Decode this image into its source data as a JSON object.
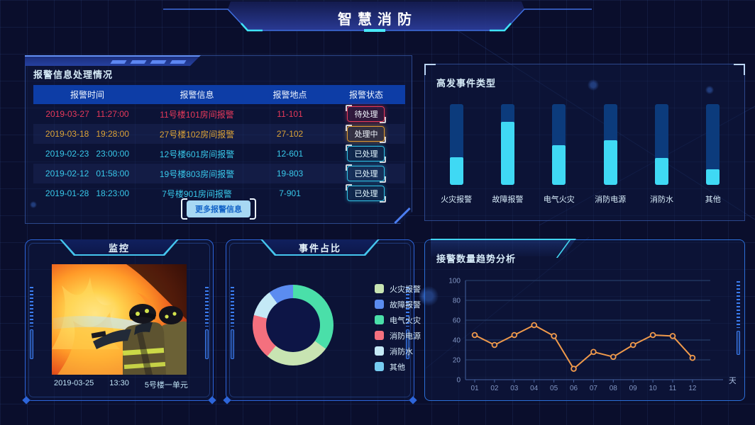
{
  "header": {
    "title": "智慧消防"
  },
  "alarm_panel": {
    "title": "报警信息处理情况",
    "columns": [
      "报警时间",
      "报警信息",
      "报警地点",
      "报警状态"
    ],
    "rows": [
      {
        "date": "2019-03-27",
        "time": "11:27:00",
        "info": "11号楼101房间报警",
        "location": "11-101",
        "status": "待处理",
        "status_type": "pending"
      },
      {
        "date": "2019-03-18",
        "time": "19:28:00",
        "info": "27号楼102房间报警",
        "location": "27-102",
        "status": "处理中",
        "status_type": "processing"
      },
      {
        "date": "2019-02-23",
        "time": "23:00:00",
        "info": "12号楼601房间报警",
        "location": "12-601",
        "status": "已处理",
        "status_type": "done"
      },
      {
        "date": "2019-02-12",
        "time": "01:58:00",
        "info": "19号楼803房间报警",
        "location": "19-803",
        "status": "已处理",
        "status_type": "done"
      },
      {
        "date": "2019-01-28",
        "time": "18:23:00",
        "info": "7号楼901房间报警",
        "location": "7-901",
        "status": "已处理",
        "status_type": "done"
      }
    ],
    "more_label": "更多报警信息"
  },
  "bar_panel": {
    "title": "高发事件类型"
  },
  "monitor_panel": {
    "title": "监控",
    "caption": {
      "date": "2019-03-25",
      "time": "13:30",
      "location": "5号楼一单元"
    }
  },
  "pie_panel": {
    "title": "事件占比"
  },
  "trend_panel": {
    "title": "接警数量趋势分析",
    "unit_label": "天"
  },
  "colors": {
    "accent_cyan": "#3fd9f4",
    "bar_track": "#0c3b7c",
    "bar_fill": "#3fd9f4",
    "table_header_bg": "#0d3da6",
    "status_pending": "#e8395a",
    "status_processing": "#e09a2f",
    "status_done": "#2fc1e4",
    "line": "#f09a4b"
  },
  "chart_data": [
    {
      "type": "bar",
      "title": "高发事件类型",
      "categories": [
        "火灾报警",
        "故障报警",
        "电气火灾",
        "消防电源",
        "消防水",
        "其他"
      ],
      "values": [
        34,
        78,
        49,
        55,
        33,
        19
      ],
      "value_unit": "percent_of_track",
      "ylim": [
        0,
        100
      ],
      "track_color": "#0c3b7c",
      "fill_color": "#3fd9f4"
    },
    {
      "type": "pie",
      "title": "事件占比",
      "inner_radius_ratio": 0.67,
      "legend_position": "right",
      "slices": [
        {
          "name": "电气火灾",
          "percent": 35,
          "color": "#4adfa9"
        },
        {
          "name": "火灾报警",
          "percent": 26,
          "color": "#c8e4b2"
        },
        {
          "name": "消防电源",
          "percent": 18,
          "color": "#f4707e"
        },
        {
          "name": "消防水",
          "percent": 11,
          "color": "#c4e9f6"
        },
        {
          "name": "故障报警",
          "percent": 10,
          "color": "#5b8cf0"
        },
        {
          "name": "其他",
          "percent": 0,
          "color": "#76ccf1"
        }
      ],
      "legend": [
        {
          "label": "火灾报警",
          "color": "#c8e4b2"
        },
        {
          "label": "故障报警",
          "color": "#5b8cf0"
        },
        {
          "label": "电气火灾",
          "color": "#4adfa9"
        },
        {
          "label": "消防电源",
          "color": "#f4707e"
        },
        {
          "label": "消防水",
          "color": "#c4e9f6"
        },
        {
          "label": "其他",
          "color": "#76ccf1"
        }
      ]
    },
    {
      "type": "line",
      "title": "接警数量趋势分析",
      "x": [
        "01",
        "02",
        "03",
        "04",
        "05",
        "06",
        "07",
        "08",
        "09",
        "10",
        "11",
        "12"
      ],
      "values": [
        45,
        35,
        45,
        55,
        44,
        11,
        28,
        23,
        35,
        45,
        44,
        22
      ],
      "ylim": [
        0,
        100
      ],
      "yticks": [
        0,
        20,
        40,
        60,
        80,
        100
      ],
      "xlabel": "天",
      "line_color": "#f09a4b",
      "grid": true
    }
  ]
}
